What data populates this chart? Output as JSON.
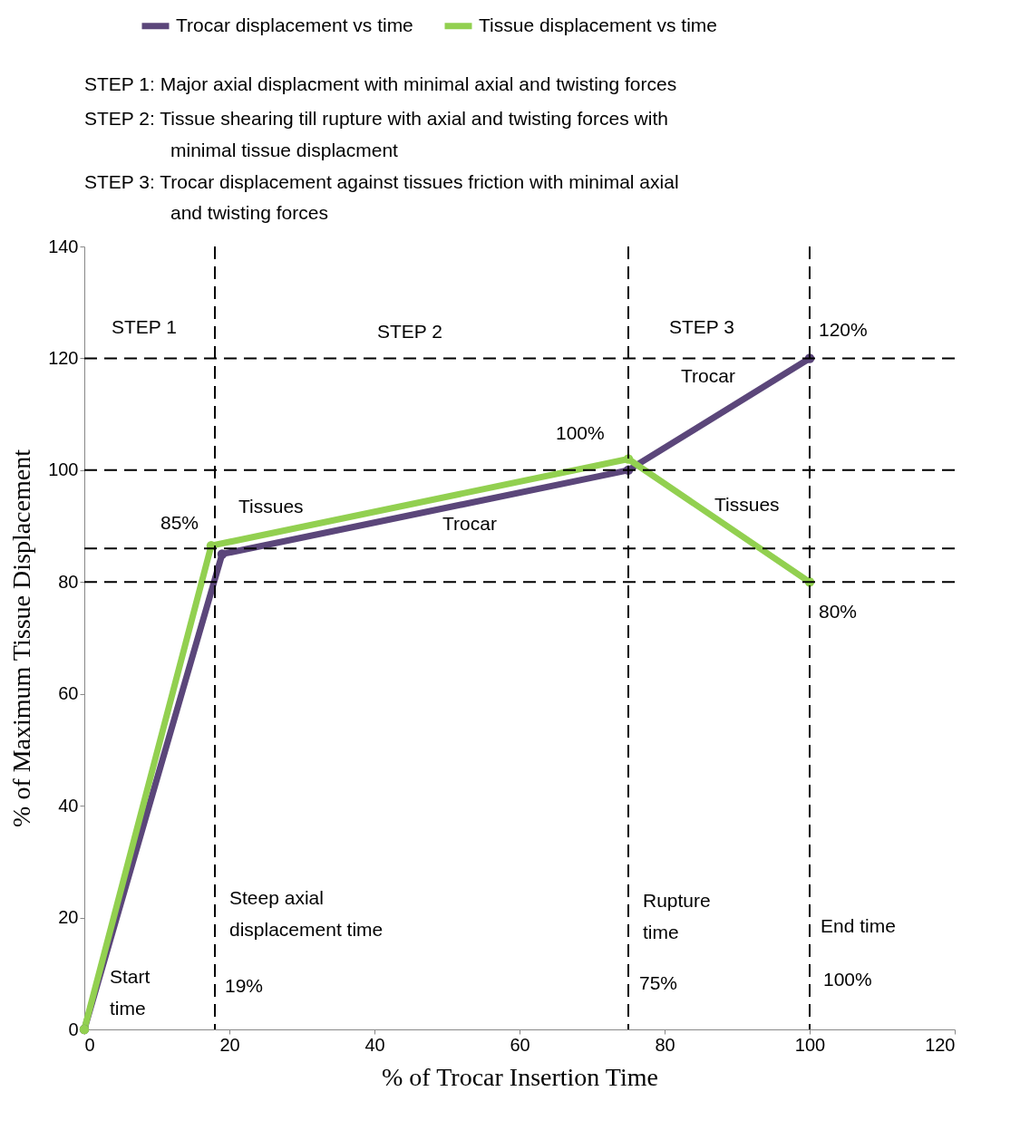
{
  "chart_data": {
    "type": "line",
    "xlabel": "% of Trocar Insertion Time",
    "ylabel": "% of Maximum Tissue Displacement",
    "xlim": [
      0,
      120
    ],
    "xticks": [
      0,
      20,
      40,
      60,
      80,
      100,
      120
    ],
    "ylim": [
      0,
      140
    ],
    "yticks": [
      0,
      20,
      40,
      60,
      80,
      100,
      120,
      140
    ],
    "grid": false,
    "legend": "top",
    "marker": "circle",
    "line_style": "solid",
    "series": [
      {
        "name": "Trocar displacement vs time",
        "color": "#5b467a",
        "x": [
          0,
          19,
          75,
          100
        ],
        "values": [
          0,
          85,
          100,
          120
        ]
      },
      {
        "name": "Tissue displacement vs time",
        "color": "#92d050",
        "x": [
          0,
          17.5,
          75,
          100
        ],
        "values": [
          0,
          86.5,
          102,
          80
        ]
      }
    ],
    "ref_lines": [
      {
        "axis": "x",
        "value": 18,
        "line_style": "dashed",
        "color": "#000000"
      },
      {
        "axis": "x",
        "value": 75,
        "line_style": "dashed",
        "color": "#000000"
      },
      {
        "axis": "x",
        "value": 100,
        "line_style": "dashed",
        "color": "#000000"
      },
      {
        "axis": "y",
        "value": 120,
        "line_style": "dashed",
        "color": "#000000"
      },
      {
        "axis": "y",
        "value": 100,
        "line_style": "dashed",
        "color": "#000000"
      },
      {
        "axis": "y",
        "value": 86,
        "line_style": "dashed",
        "color": "#000000"
      },
      {
        "axis": "y",
        "value": 80,
        "line_style": "dashed",
        "color": "#000000"
      }
    ],
    "annotations": [
      "STEP 1: Major axial displacment with minimal axial and twisting forces",
      "STEP 2: Tissue shearing till rupture with axial and twisting forces with\nminimal tissue displacment",
      "STEP 3: Trocar displacement against tissues friction with minimal axial\nand twisting forces",
      "STEP 1",
      "STEP 2",
      "STEP 3",
      {
        "text": "120%",
        "x": 100,
        "y": 120
      },
      "Trocar",
      {
        "text": "100%",
        "x": 75,
        "y": 102
      },
      "Tissues",
      {
        "text": "85%",
        "x": 17.5,
        "y": 86.5
      },
      "Trocar",
      "Tissues",
      {
        "text": "80%",
        "x": 100,
        "y": 80
      },
      "Steep axial\ndisplacement time",
      "Rupture\ntime",
      "End time",
      "Start\ntime",
      "19%",
      "75%",
      "100%"
    ]
  }
}
